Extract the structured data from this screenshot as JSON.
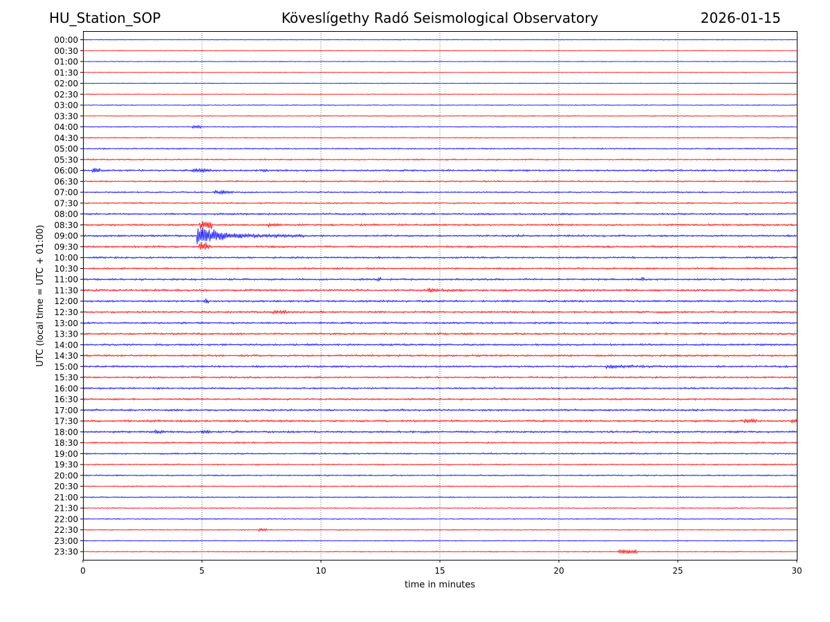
{
  "header": {
    "station": "HU_Station_SOP",
    "title": "Köveslígethy Radó Seismological Observatory",
    "date": "2026-01-15"
  },
  "chart_data": {
    "type": "line",
    "title": "Köveslígethy Radó Seismological Observatory",
    "xlabel": "time in minutes",
    "ylabel": "UTC (local time = UTC + 01:00)",
    "xlim": [
      0,
      30
    ],
    "xticks": [
      "0",
      "5",
      "10",
      "15",
      "20",
      "25",
      "30"
    ],
    "xtick_values": [
      0,
      5,
      10,
      15,
      20,
      25,
      30
    ],
    "grid": "vertical dotted at each x tick",
    "colors": {
      "even": "#0000ff",
      "odd": "#ff0000"
    },
    "rows": [
      "00:00",
      "00:30",
      "01:00",
      "01:30",
      "02:00",
      "02:30",
      "03:00",
      "03:30",
      "04:00",
      "04:30",
      "05:00",
      "05:30",
      "06:00",
      "06:30",
      "07:00",
      "07:30",
      "08:00",
      "08:30",
      "09:00",
      "09:30",
      "10:00",
      "10:30",
      "11:00",
      "11:30",
      "12:00",
      "12:30",
      "13:00",
      "13:30",
      "14:00",
      "14:30",
      "15:00",
      "15:30",
      "16:00",
      "16:30",
      "17:00",
      "17:30",
      "18:00",
      "18:30",
      "19:00",
      "19:30",
      "20:00",
      "20:30",
      "21:00",
      "21:30",
      "22:00",
      "22:30",
      "23:00",
      "23:30"
    ],
    "noise_level": [
      0.5,
      0.5,
      0.5,
      0.5,
      0.5,
      0.5,
      0.6,
      0.6,
      0.7,
      0.7,
      0.9,
      0.9,
      1.2,
      1.0,
      1.0,
      1.0,
      1.2,
      1.3,
      1.3,
      1.3,
      1.2,
      1.2,
      1.3,
      1.4,
      1.3,
      1.3,
      1.3,
      1.3,
      1.3,
      1.3,
      1.3,
      1.2,
      1.2,
      1.2,
      1.3,
      1.4,
      1.3,
      1.1,
      1.0,
      0.9,
      0.9,
      0.8,
      0.8,
      0.7,
      0.7,
      0.7,
      0.6,
      0.7
    ],
    "events": [
      {
        "row": "04:00",
        "minute": 4.6,
        "amplitude": 2,
        "duration": 0.4
      },
      {
        "row": "06:00",
        "minute": 0.4,
        "amplitude": 4,
        "duration": 0.3
      },
      {
        "row": "06:00",
        "minute": 4.6,
        "amplitude": 2,
        "duration": 0.8
      },
      {
        "row": "06:00",
        "minute": 7.5,
        "amplitude": 2,
        "duration": 1.2
      },
      {
        "row": "07:00",
        "minute": 5.5,
        "amplitude": 2,
        "duration": 0.8
      },
      {
        "row": "08:30",
        "minute": 4.9,
        "amplitude": 6,
        "duration": 0.5
      },
      {
        "row": "08:30",
        "minute": 7.8,
        "amplitude": 2,
        "duration": 1.5
      },
      {
        "row": "09:00",
        "minute": 4.8,
        "amplitude": 16,
        "duration": 4.5
      },
      {
        "row": "09:30",
        "minute": 4.9,
        "amplitude": 6,
        "duration": 0.4
      },
      {
        "row": "11:00",
        "minute": 12.4,
        "amplitude": 3,
        "duration": 0.1
      },
      {
        "row": "11:00",
        "minute": 23.5,
        "amplitude": 3,
        "duration": 0.1
      },
      {
        "row": "11:30",
        "minute": 14.5,
        "amplitude": 4,
        "duration": 1.5
      },
      {
        "row": "12:00",
        "minute": 5.1,
        "amplitude": 3,
        "duration": 0.2
      },
      {
        "row": "12:30",
        "minute": 8.0,
        "amplitude": 2,
        "duration": 0.5
      },
      {
        "row": "15:00",
        "minute": 22.0,
        "amplitude": 3,
        "duration": 3.0
      },
      {
        "row": "17:30",
        "minute": 27.8,
        "amplitude": 2,
        "duration": 0.5
      },
      {
        "row": "17:30",
        "minute": 29.8,
        "amplitude": 3,
        "duration": 0.4
      },
      {
        "row": "18:00",
        "minute": 3.0,
        "amplitude": 2,
        "duration": 2.0
      },
      {
        "row": "18:00",
        "minute": 5.0,
        "amplitude": 3,
        "duration": 0.3
      },
      {
        "row": "22:30",
        "minute": 7.4,
        "amplitude": 2,
        "duration": 0.3
      },
      {
        "row": "23:30",
        "minute": 22.5,
        "amplitude": 3,
        "duration": 0.8
      }
    ]
  }
}
